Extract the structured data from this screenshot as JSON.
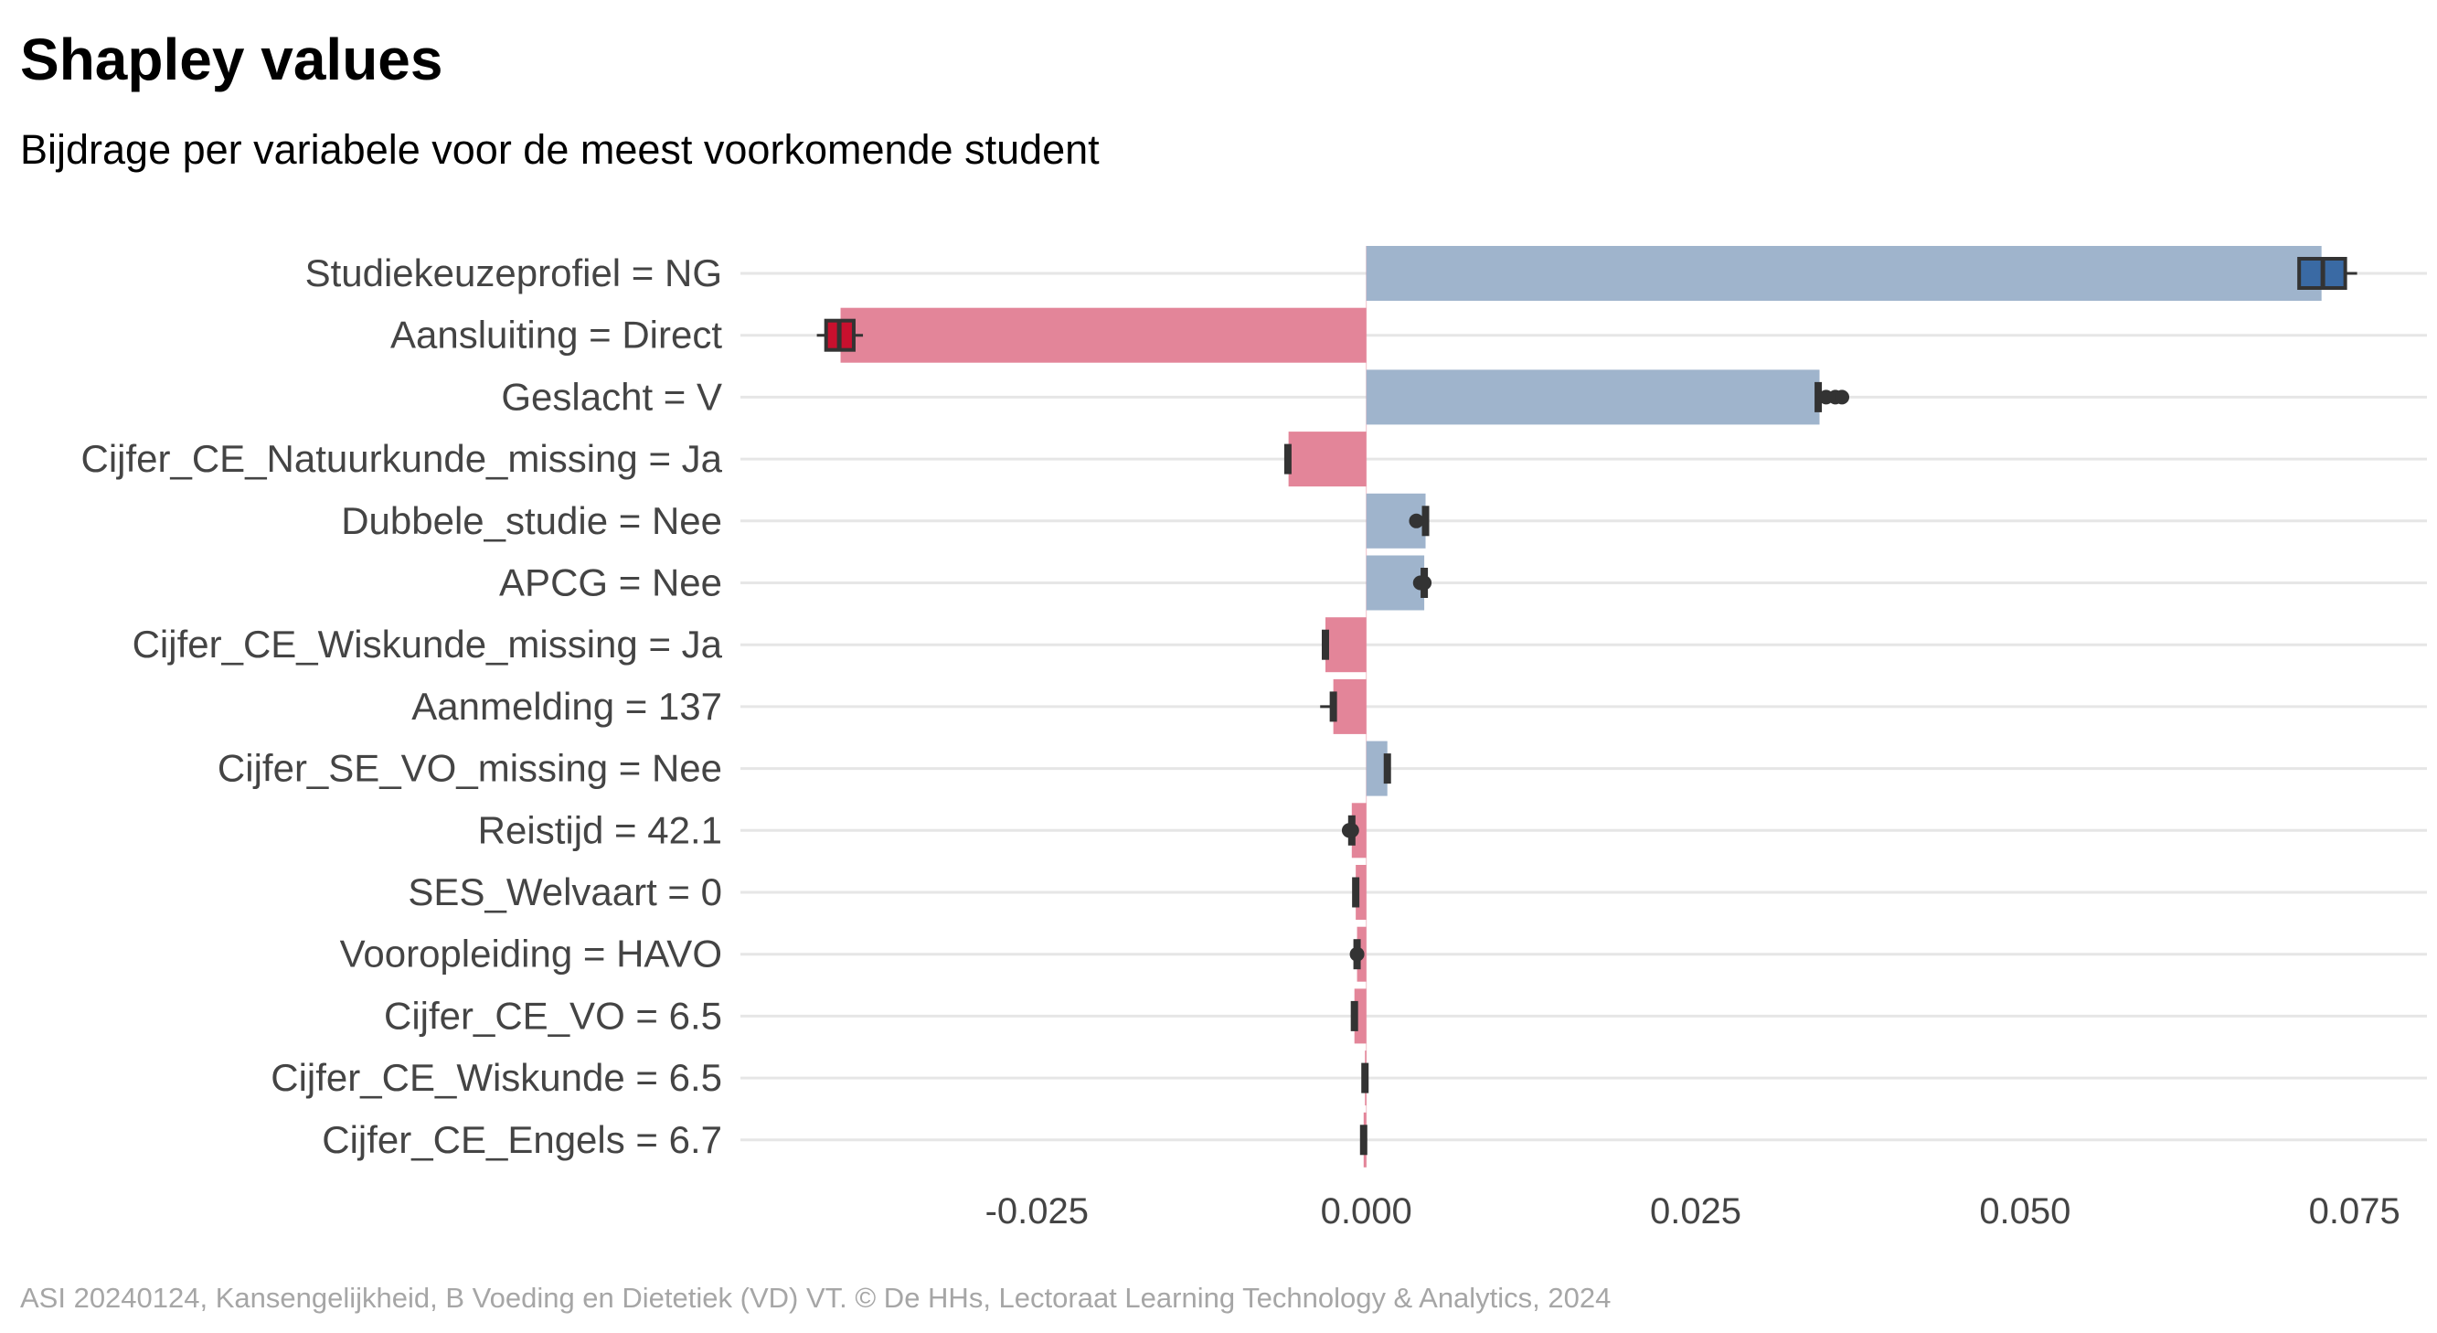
{
  "title": "Shapley values",
  "subtitle": "Bijdrage per variabele voor de meest voorkomende student",
  "caption": "ASI 20240124, Kansengelijkheid, B Voeding en Dietetiek (VD) VT. © De HHs, Lectoraat Learning Technology & Analytics, 2024",
  "chart_data": {
    "type": "bar",
    "orientation": "horizontal",
    "title": "Shapley values",
    "subtitle": "Bijdrage per variabele voor de meest voorkomende student",
    "xlabel": "",
    "ylabel": "",
    "xlim": [
      -0.0475,
      0.0805
    ],
    "xticks": [
      "-0.025",
      "0.000",
      "0.025",
      "0.050",
      "0.075"
    ],
    "xtick_values": [
      -0.025,
      0.0,
      0.025,
      0.05,
      0.075
    ],
    "grid": "horizontal",
    "legend": "none",
    "colors": {
      "positive": "#9fb4cc",
      "negative": "#e38599",
      "positive_box": "#3a6aa4",
      "negative_box": "#c8102e",
      "marker": "#333333",
      "grid": "#e6e6e6"
    },
    "categories": [
      "Studiekeuzeprofiel = NG",
      "Aansluiting = Direct",
      "Geslacht = V",
      "Cijfer_CE_Natuurkunde_missing = Ja",
      "Dubbele_studie = Nee",
      "APCG = Nee",
      "Cijfer_CE_Wiskunde_missing = Ja",
      "Aanmelding = 137",
      "Cijfer_SE_VO_missing = Nee",
      "Reistijd = 42.1",
      "SES_Welvaart = 0",
      "Vooropleiding = HAVO",
      "Cijfer_CE_VO = 6.5",
      "Cijfer_CE_Wiskunde = 6.5",
      "Cijfer_CE_Engels = 6.7"
    ],
    "values": [
      0.0725,
      -0.0399,
      0.0344,
      -0.0059,
      0.0045,
      0.0044,
      -0.0031,
      -0.0025,
      0.0016,
      -0.0011,
      -0.0008,
      -0.0007,
      -0.0009,
      -0.0001,
      -0.0002
    ],
    "distribution": [
      {
        "q1": 0.0708,
        "median": 0.0726,
        "q3": 0.0743,
        "min": 0.0708,
        "max": 0.0752,
        "points": []
      },
      {
        "q1": -0.041,
        "median": -0.04,
        "q3": -0.0389,
        "min": -0.0417,
        "max": -0.0382,
        "points": []
      },
      {
        "q1": 0.0341,
        "median": 0.0343,
        "q3": 0.0345,
        "min": 0.0341,
        "max": 0.0346,
        "points": [
          0.0349,
          0.0356,
          0.0361
        ]
      },
      {
        "q1": -0.0061,
        "median": -0.0059,
        "q3": -0.0058,
        "min": -0.0061,
        "max": -0.0058,
        "points": []
      },
      {
        "q1": 0.0044,
        "median": 0.0045,
        "q3": 0.0046,
        "min": 0.0044,
        "max": 0.0046,
        "points": [
          0.0038
        ]
      },
      {
        "q1": 0.0043,
        "median": 0.0044,
        "q3": 0.0045,
        "min": 0.0043,
        "max": 0.0045,
        "points": [
          0.0041,
          0.0042,
          0.0044
        ]
      },
      {
        "q1": -0.0032,
        "median": -0.0031,
        "q3": -0.003,
        "min": -0.0032,
        "max": -0.003,
        "points": []
      },
      {
        "q1": -0.0027,
        "median": -0.0025,
        "q3": -0.0023,
        "min": -0.0035,
        "max": -0.0023,
        "points": []
      },
      {
        "q1": 0.0015,
        "median": 0.0016,
        "q3": 0.0017,
        "min": 0.0015,
        "max": 0.0017,
        "points": []
      },
      {
        "q1": -0.0012,
        "median": -0.0011,
        "q3": -0.001,
        "min": -0.0014,
        "max": -0.0008,
        "points": [
          -0.0013,
          -0.0011
        ]
      },
      {
        "q1": -0.0009,
        "median": -0.0008,
        "q3": -0.0007,
        "min": -0.0009,
        "max": -0.0007,
        "points": []
      },
      {
        "q1": -0.0008,
        "median": -0.0007,
        "q3": -0.0006,
        "min": -0.0009,
        "max": -0.0005,
        "points": [
          -0.0007
        ]
      },
      {
        "q1": -0.001,
        "median": -0.0009,
        "q3": -0.0008,
        "min": -0.001,
        "max": -0.0008,
        "points": []
      },
      {
        "q1": -0.0002,
        "median": -0.0001,
        "q3": 0.0,
        "min": -0.0002,
        "max": 0.0,
        "points": []
      },
      {
        "q1": -0.0003,
        "median": -0.0002,
        "q3": -0.0001,
        "min": -0.0003,
        "max": -0.0001,
        "points": []
      }
    ]
  }
}
